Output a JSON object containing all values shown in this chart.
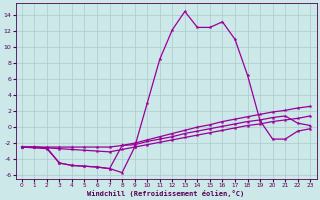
{
  "xlabel": "Windchill (Refroidissement éolien,°C)",
  "bg_color": "#cce8e8",
  "grid_color": "#aacccc",
  "line_color": "#990099",
  "xlim": [
    -0.5,
    23.5
  ],
  "ylim": [
    -6.5,
    15.5
  ],
  "xticks": [
    0,
    1,
    2,
    3,
    4,
    5,
    6,
    7,
    8,
    9,
    10,
    11,
    12,
    13,
    14,
    15,
    16,
    17,
    18,
    19,
    20,
    21,
    22,
    23
  ],
  "yticks": [
    -6,
    -4,
    -2,
    0,
    2,
    4,
    6,
    8,
    10,
    12,
    14
  ],
  "line1_x": [
    0,
    1,
    2,
    3,
    4,
    5,
    6,
    7,
    8,
    9,
    10,
    11,
    12,
    13,
    14,
    15,
    16,
    17,
    18,
    19,
    20,
    21,
    22,
    23
  ],
  "line1_y": [
    -2.5,
    -2.5,
    -2.6,
    -4.5,
    -4.8,
    -4.9,
    -5.0,
    -5.2,
    -5.7,
    -2.5,
    3.0,
    8.5,
    12.2,
    14.5,
    12.5,
    12.5,
    13.2,
    11.0,
    6.5,
    0.8,
    -1.5,
    -1.5,
    -0.5,
    -0.2
  ],
  "line2_x": [
    0,
    1,
    2,
    3,
    4,
    5,
    6,
    7,
    8,
    9,
    10,
    11,
    12,
    13,
    14,
    15,
    16,
    17,
    18,
    19,
    20,
    21,
    22,
    23
  ],
  "line2_y": [
    -2.5,
    -2.5,
    -2.5,
    -2.5,
    -2.5,
    -2.5,
    -2.5,
    -2.5,
    -2.3,
    -2.0,
    -1.6,
    -1.2,
    -0.8,
    -0.4,
    -0.0,
    0.3,
    0.7,
    1.0,
    1.3,
    1.6,
    1.9,
    2.1,
    2.4,
    2.6
  ],
  "line3_x": [
    0,
    1,
    2,
    3,
    4,
    5,
    6,
    7,
    8,
    9,
    10,
    11,
    12,
    13,
    14,
    15,
    16,
    17,
    18,
    19,
    20,
    21,
    22,
    23
  ],
  "line3_y": [
    -2.5,
    -2.5,
    -2.6,
    -2.7,
    -2.8,
    -2.9,
    -3.0,
    -3.1,
    -2.8,
    -2.5,
    -2.2,
    -1.9,
    -1.6,
    -1.3,
    -1.0,
    -0.7,
    -0.4,
    -0.1,
    0.2,
    0.4,
    0.7,
    0.9,
    1.1,
    1.4
  ],
  "line4_x": [
    0,
    2,
    3,
    4,
    5,
    6,
    7,
    8,
    9,
    10,
    11,
    12,
    13,
    14,
    15,
    16,
    17,
    18,
    19,
    20,
    21,
    22,
    23
  ],
  "line4_y": [
    -2.5,
    -2.7,
    -4.5,
    -4.8,
    -4.9,
    -5.0,
    -5.2,
    -2.3,
    -2.2,
    -1.8,
    -1.5,
    -1.2,
    -0.8,
    -0.5,
    -0.2,
    0.1,
    0.4,
    0.7,
    0.9,
    1.2,
    1.4,
    0.5,
    0.2
  ]
}
